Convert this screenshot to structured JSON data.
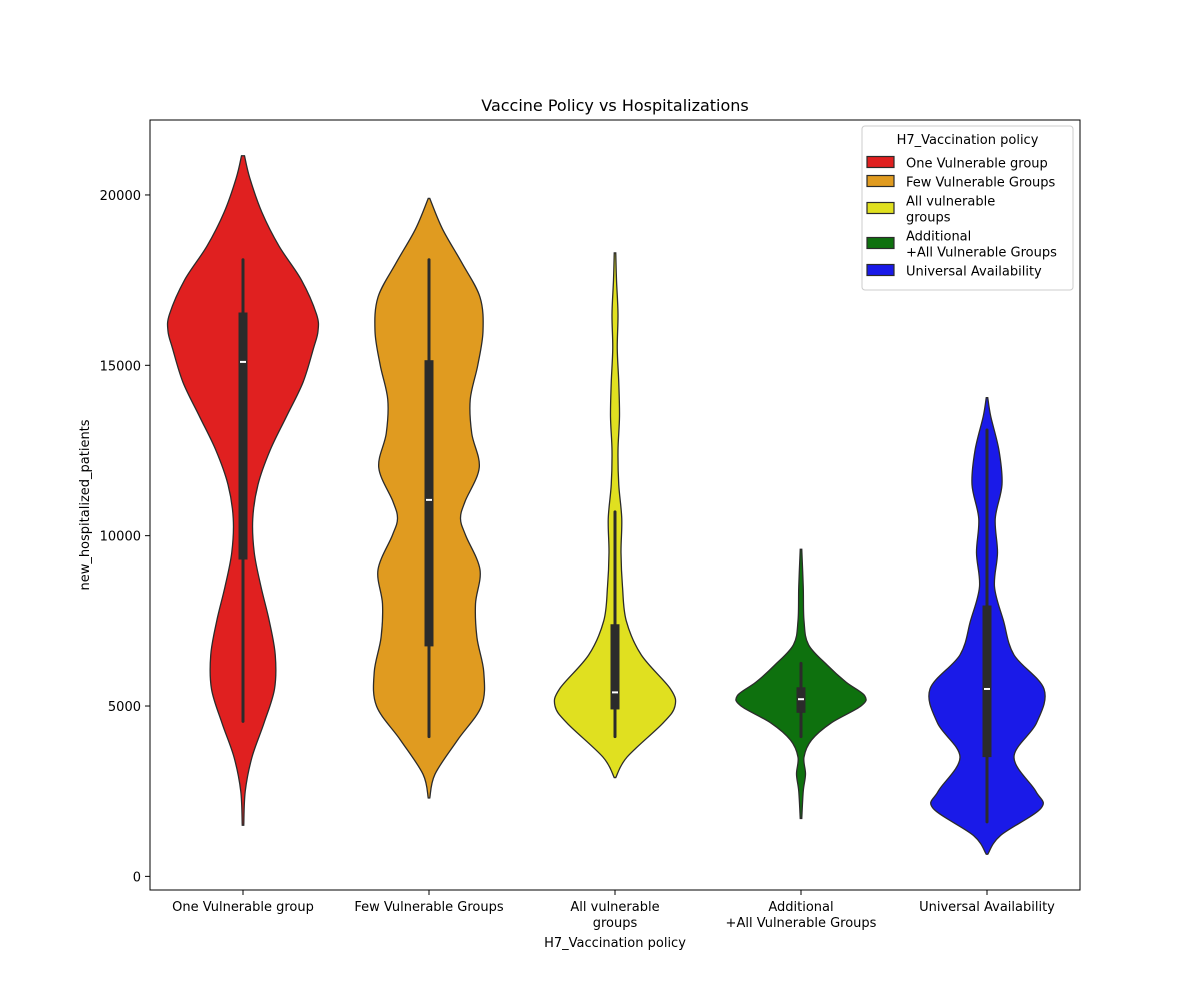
{
  "chart_data": {
    "type": "violin",
    "title": "Vaccine Policy vs Hospitalizations",
    "xlabel": "H7_Vaccination policy",
    "ylabel": "new_hospitalized_patients",
    "ylim": [
      -400,
      22200
    ],
    "yticks": [
      0,
      5000,
      10000,
      15000,
      20000
    ],
    "grid": false,
    "legend": {
      "title": "H7_Vaccination policy",
      "placement": "top-right",
      "entries": [
        {
          "lines": [
            "One Vulnerable group"
          ],
          "color": "#e02020"
        },
        {
          "lines": [
            "Few Vulnerable Groups"
          ],
          "color": "#e09b20"
        },
        {
          "lines": [
            "All vulnerable",
            "groups"
          ],
          "color": "#e0e020"
        },
        {
          "lines": [
            "Additional",
            "+All Vulnerable Groups"
          ],
          "color": "#0e710e"
        },
        {
          "lines": [
            "Universal Availability"
          ],
          "color": "#1a1ae8"
        }
      ]
    },
    "categories": [
      {
        "label_lines": [
          "One Vulnerable group"
        ],
        "color": "#e02020",
        "stats": {
          "min": 4550,
          "q1": 9300,
          "median": 15100,
          "q3": 16550,
          "max": 18100
        },
        "density": [
          [
            1500,
            0.01
          ],
          [
            2500,
            0.03
          ],
          [
            3500,
            0.12
          ],
          [
            4500,
            0.28
          ],
          [
            5500,
            0.42
          ],
          [
            6500,
            0.43
          ],
          [
            7500,
            0.35
          ],
          [
            8500,
            0.24
          ],
          [
            9500,
            0.15
          ],
          [
            10500,
            0.13
          ],
          [
            11500,
            0.2
          ],
          [
            12500,
            0.36
          ],
          [
            13500,
            0.58
          ],
          [
            14500,
            0.8
          ],
          [
            15500,
            0.94
          ],
          [
            16000,
            1.0
          ],
          [
            16500,
            0.98
          ],
          [
            17500,
            0.78
          ],
          [
            18500,
            0.48
          ],
          [
            19500,
            0.25
          ],
          [
            20500,
            0.09
          ],
          [
            21150,
            0.02
          ]
        ]
      },
      {
        "label_lines": [
          "Few Vulnerable Groups"
        ],
        "color": "#e09b20",
        "stats": {
          "min": 4100,
          "q1": 6750,
          "median": 11050,
          "q3": 15150,
          "max": 18100
        },
        "density": [
          [
            2300,
            0.01
          ],
          [
            3000,
            0.08
          ],
          [
            4000,
            0.38
          ],
          [
            5000,
            0.7
          ],
          [
            6000,
            0.73
          ],
          [
            7000,
            0.64
          ],
          [
            8000,
            0.62
          ],
          [
            9000,
            0.68
          ],
          [
            10000,
            0.49
          ],
          [
            10500,
            0.42
          ],
          [
            11000,
            0.48
          ],
          [
            12000,
            0.67
          ],
          [
            13000,
            0.57
          ],
          [
            14000,
            0.55
          ],
          [
            15000,
            0.65
          ],
          [
            16000,
            0.72
          ],
          [
            17000,
            0.68
          ],
          [
            18000,
            0.44
          ],
          [
            19000,
            0.18
          ],
          [
            19900,
            0.01
          ]
        ]
      },
      {
        "label_lines": [
          "All vulnerable",
          "groups"
        ],
        "color": "#e0e020",
        "stats": {
          "min": 4100,
          "q1": 4900,
          "median": 5400,
          "q3": 7400,
          "max": 10700
        },
        "density": [
          [
            2900,
            0.01
          ],
          [
            3500,
            0.16
          ],
          [
            4500,
            0.64
          ],
          [
            5000,
            0.8
          ],
          [
            5500,
            0.74
          ],
          [
            6500,
            0.35
          ],
          [
            7500,
            0.15
          ],
          [
            8500,
            0.1
          ],
          [
            9500,
            0.08
          ],
          [
            10500,
            0.09
          ],
          [
            11500,
            0.05
          ],
          [
            12500,
            0.04
          ],
          [
            13500,
            0.06
          ],
          [
            14500,
            0.05
          ],
          [
            15500,
            0.03
          ],
          [
            16500,
            0.04
          ],
          [
            17500,
            0.02
          ],
          [
            18300,
            0.01
          ]
        ]
      },
      {
        "label_lines": [
          "Additional",
          "+All Vulnerable Groups"
        ],
        "color": "#0e710e",
        "stats": {
          "min": 4100,
          "q1": 4800,
          "median": 5200,
          "q3": 5550,
          "max": 6250
        },
        "density": [
          [
            1700,
            0.01
          ],
          [
            2500,
            0.03
          ],
          [
            3000,
            0.06
          ],
          [
            3500,
            0.04
          ],
          [
            4000,
            0.14
          ],
          [
            4500,
            0.4
          ],
          [
            5000,
            0.8
          ],
          [
            5300,
            0.85
          ],
          [
            5700,
            0.6
          ],
          [
            6200,
            0.35
          ],
          [
            6800,
            0.1
          ],
          [
            7500,
            0.04
          ],
          [
            8500,
            0.03
          ],
          [
            9600,
            0.01
          ]
        ]
      },
      {
        "label_lines": [
          "Universal Availability"
        ],
        "color": "#1a1ae8",
        "stats": {
          "min": 1600,
          "q1": 3500,
          "median": 5500,
          "q3": 7950,
          "max": 13100
        },
        "density": [
          [
            650,
            0.01
          ],
          [
            1200,
            0.18
          ],
          [
            2000,
            0.72
          ],
          [
            2500,
            0.65
          ],
          [
            3500,
            0.36
          ],
          [
            4500,
            0.66
          ],
          [
            5500,
            0.76
          ],
          [
            6500,
            0.36
          ],
          [
            7500,
            0.22
          ],
          [
            8500,
            0.1
          ],
          [
            9500,
            0.14
          ],
          [
            10500,
            0.11
          ],
          [
            11500,
            0.2
          ],
          [
            12500,
            0.16
          ],
          [
            13500,
            0.05
          ],
          [
            14050,
            0.01
          ]
        ]
      }
    ]
  }
}
